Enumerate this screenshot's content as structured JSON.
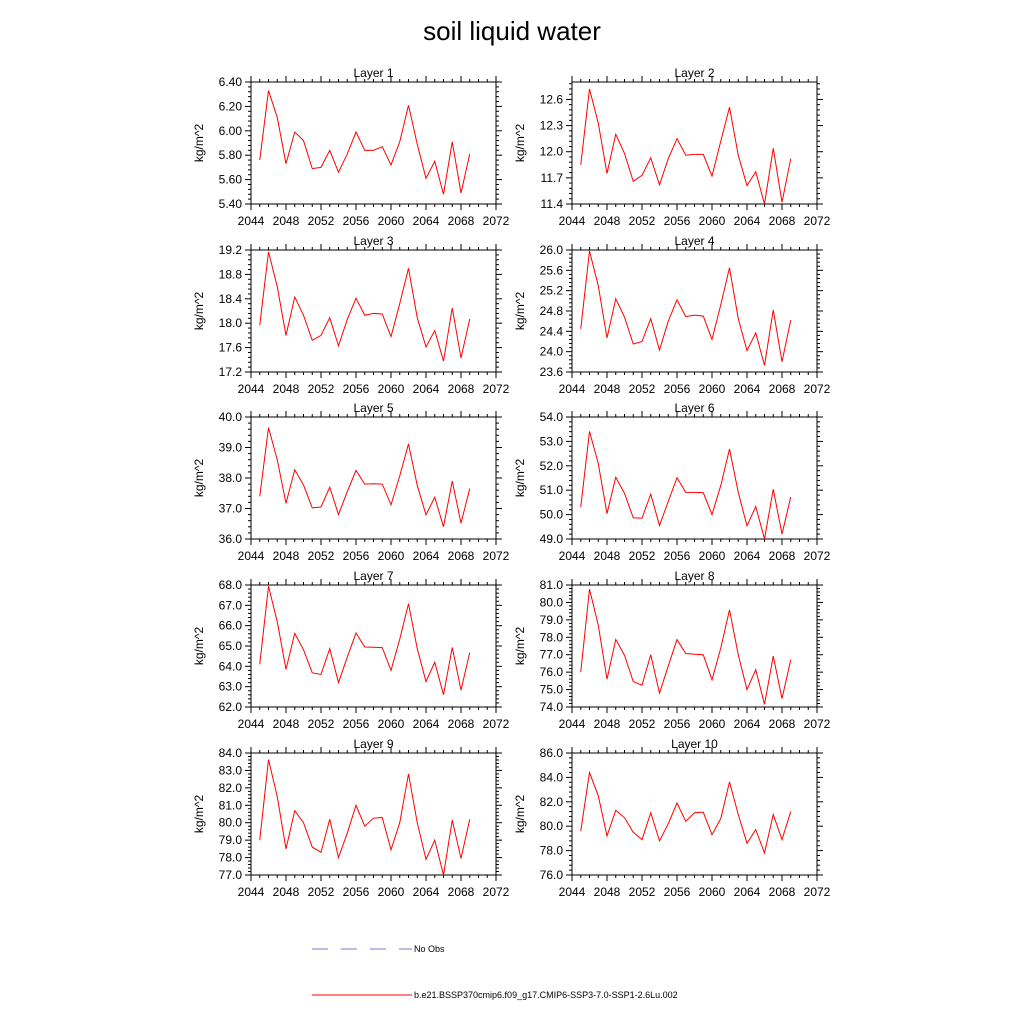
{
  "title": "soil liquid water",
  "colors": {
    "series": "#ff0000",
    "obs": "#7777cc",
    "axis": "#000000"
  },
  "legend": {
    "obs_label": "No Obs",
    "series_label": "b.e21.BSSP370cmip6.f09_g17.CMIP6-SSP3-7.0-SSP1-2.6Lu.002"
  },
  "chart_data": [
    {
      "type": "line",
      "title": "Layer 1",
      "xlabel": "",
      "ylabel": "kg/m^2",
      "xlim": [
        2044,
        2072
      ],
      "ylim": [
        5.4,
        6.4
      ],
      "xticks": [
        2044,
        2048,
        2052,
        2056,
        2060,
        2064,
        2068,
        2072
      ],
      "yticks": [
        "5.40",
        "5.60",
        "5.80",
        "6.00",
        "6.20",
        "6.40"
      ],
      "x": [
        2045,
        2046,
        2047,
        2048,
        2049,
        2050,
        2051,
        2052,
        2053,
        2054,
        2055,
        2056,
        2057,
        2058,
        2059,
        2060,
        2061,
        2062,
        2063,
        2064,
        2065,
        2066,
        2067,
        2068,
        2069
      ],
      "series": [
        {
          "values": [
            5.76,
            6.33,
            6.11,
            5.73,
            5.99,
            5.92,
            5.69,
            5.7,
            5.84,
            5.66,
            5.81,
            5.99,
            5.84,
            5.84,
            5.87,
            5.72,
            5.91,
            6.21,
            5.89,
            5.61,
            5.75,
            5.48,
            5.91,
            5.49,
            5.81
          ]
        }
      ]
    },
    {
      "type": "line",
      "title": "Layer 2",
      "xlabel": "",
      "ylabel": "kg/m^2",
      "xlim": [
        2044,
        2072
      ],
      "ylim": [
        11.4,
        12.8
      ],
      "xticks": [
        2044,
        2048,
        2052,
        2056,
        2060,
        2064,
        2068,
        2072
      ],
      "yticks": [
        "11.4",
        "11.7",
        "12.0",
        "12.3",
        "12.6"
      ],
      "x": [
        2045,
        2046,
        2047,
        2048,
        2049,
        2050,
        2051,
        2052,
        2053,
        2054,
        2055,
        2056,
        2057,
        2058,
        2059,
        2060,
        2061,
        2062,
        2063,
        2064,
        2065,
        2066,
        2067,
        2068,
        2069
      ],
      "series": [
        {
          "values": [
            11.85,
            12.72,
            12.33,
            11.75,
            12.2,
            11.98,
            11.66,
            11.73,
            11.93,
            11.62,
            11.92,
            12.15,
            11.96,
            11.97,
            11.97,
            11.72,
            12.12,
            12.51,
            11.96,
            11.61,
            11.77,
            11.4,
            12.04,
            11.42,
            11.92
          ]
        }
      ]
    },
    {
      "type": "line",
      "title": "Layer 3",
      "xlabel": "",
      "ylabel": "kg/m^2",
      "xlim": [
        2044,
        2072
      ],
      "ylim": [
        17.2,
        19.2
      ],
      "xticks": [
        2044,
        2048,
        2052,
        2056,
        2060,
        2064,
        2068,
        2072
      ],
      "yticks": [
        "17.2",
        "17.6",
        "18.0",
        "18.4",
        "18.8",
        "19.2"
      ],
      "x": [
        2045,
        2046,
        2047,
        2048,
        2049,
        2050,
        2051,
        2052,
        2053,
        2054,
        2055,
        2056,
        2057,
        2058,
        2059,
        2060,
        2061,
        2062,
        2063,
        2064,
        2065,
        2066,
        2067,
        2068,
        2069
      ],
      "series": [
        {
          "values": [
            17.97,
            19.17,
            18.6,
            17.8,
            18.43,
            18.13,
            17.72,
            17.8,
            18.09,
            17.63,
            18.06,
            18.41,
            18.13,
            18.16,
            18.15,
            17.78,
            18.32,
            18.9,
            18.09,
            17.61,
            17.88,
            17.38,
            18.25,
            17.43,
            18.07
          ]
        }
      ]
    },
    {
      "type": "line",
      "title": "Layer 4",
      "xlabel": "",
      "ylabel": "kg/m^2",
      "xlim": [
        2044,
        2072
      ],
      "ylim": [
        23.6,
        26.0
      ],
      "xticks": [
        2044,
        2048,
        2052,
        2056,
        2060,
        2064,
        2068,
        2072
      ],
      "yticks": [
        "23.6",
        "24.0",
        "24.4",
        "24.8",
        "25.2",
        "25.6",
        "26.0"
      ],
      "x": [
        2045,
        2046,
        2047,
        2048,
        2049,
        2050,
        2051,
        2052,
        2053,
        2054,
        2055,
        2056,
        2057,
        2058,
        2059,
        2060,
        2061,
        2062,
        2063,
        2064,
        2065,
        2066,
        2067,
        2068,
        2069
      ],
      "series": [
        {
          "values": [
            24.45,
            25.98,
            25.3,
            24.27,
            25.04,
            24.68,
            24.15,
            24.2,
            24.65,
            24.03,
            24.6,
            25.02,
            24.69,
            24.72,
            24.7,
            24.24,
            24.92,
            25.65,
            24.65,
            24.02,
            24.37,
            23.73,
            24.82,
            23.8,
            24.62
          ]
        }
      ]
    },
    {
      "type": "line",
      "title": "Layer 5",
      "xlabel": "",
      "ylabel": "kg/m^2",
      "xlim": [
        2044,
        2072
      ],
      "ylim": [
        36.0,
        40.0
      ],
      "xticks": [
        2044,
        2048,
        2052,
        2056,
        2060,
        2064,
        2068,
        2072
      ],
      "yticks": [
        "36.0",
        "37.0",
        "38.0",
        "39.0",
        "40.0"
      ],
      "x": [
        2045,
        2046,
        2047,
        2048,
        2049,
        2050,
        2051,
        2052,
        2053,
        2054,
        2055,
        2056,
        2057,
        2058,
        2059,
        2060,
        2061,
        2062,
        2063,
        2064,
        2065,
        2066,
        2067,
        2068,
        2069
      ],
      "series": [
        {
          "values": [
            37.4,
            39.65,
            38.6,
            37.17,
            38.27,
            37.77,
            37.02,
            37.05,
            37.7,
            36.8,
            37.55,
            38.25,
            37.8,
            37.81,
            37.8,
            37.12,
            38.07,
            39.12,
            37.76,
            36.79,
            37.37,
            36.4,
            37.9,
            36.52,
            37.65
          ]
        }
      ]
    },
    {
      "type": "line",
      "title": "Layer 6",
      "xlabel": "",
      "ylabel": "kg/m^2",
      "xlim": [
        2044,
        2072
      ],
      "ylim": [
        49.0,
        54.0
      ],
      "xticks": [
        2044,
        2048,
        2052,
        2056,
        2060,
        2064,
        2068,
        2072
      ],
      "yticks": [
        "49.0",
        "50.0",
        "51.0",
        "52.0",
        "53.0",
        "54.0"
      ],
      "x": [
        2045,
        2046,
        2047,
        2048,
        2049,
        2050,
        2051,
        2052,
        2053,
        2054,
        2055,
        2056,
        2057,
        2058,
        2059,
        2060,
        2061,
        2062,
        2063,
        2064,
        2065,
        2066,
        2067,
        2068,
        2069
      ],
      "series": [
        {
          "values": [
            50.31,
            53.41,
            52.1,
            50.04,
            51.53,
            50.87,
            49.87,
            49.85,
            50.84,
            49.55,
            50.54,
            51.51,
            50.91,
            50.91,
            50.9,
            50.0,
            51.19,
            52.69,
            50.91,
            49.54,
            50.33,
            49.0,
            51.04,
            49.2,
            50.72
          ]
        }
      ]
    },
    {
      "type": "line",
      "title": "Layer 7",
      "xlabel": "",
      "ylabel": "kg/m^2",
      "xlim": [
        2044,
        2072
      ],
      "ylim": [
        62.0,
        68.0
      ],
      "xticks": [
        2044,
        2048,
        2052,
        2056,
        2060,
        2064,
        2068,
        2072
      ],
      "yticks": [
        "62.0",
        "63.0",
        "64.0",
        "65.0",
        "66.0",
        "67.0",
        "68.0"
      ],
      "x": [
        2045,
        2046,
        2047,
        2048,
        2049,
        2050,
        2051,
        2052,
        2053,
        2054,
        2055,
        2056,
        2057,
        2058,
        2059,
        2060,
        2061,
        2062,
        2063,
        2064,
        2065,
        2066,
        2067,
        2068,
        2069
      ],
      "series": [
        {
          "values": [
            64.1,
            67.94,
            66.2,
            63.85,
            65.62,
            64.82,
            63.68,
            63.6,
            64.87,
            63.2,
            64.45,
            65.64,
            64.95,
            64.94,
            64.92,
            63.8,
            65.34,
            67.08,
            64.87,
            63.25,
            64.2,
            62.6,
            64.93,
            62.83,
            64.68
          ]
        }
      ]
    },
    {
      "type": "line",
      "title": "Layer 8",
      "xlabel": "",
      "ylabel": "kg/m^2",
      "xlim": [
        2044,
        2072
      ],
      "ylim": [
        74.0,
        81.0
      ],
      "xticks": [
        2044,
        2048,
        2052,
        2056,
        2060,
        2064,
        2068,
        2072
      ],
      "yticks": [
        "74.0",
        "75.0",
        "76.0",
        "77.0",
        "78.0",
        "79.0",
        "80.0",
        "81.0"
      ],
      "x": [
        2045,
        2046,
        2047,
        2048,
        2049,
        2050,
        2051,
        2052,
        2053,
        2054,
        2055,
        2056,
        2057,
        2058,
        2059,
        2060,
        2061,
        2062,
        2063,
        2064,
        2065,
        2066,
        2067,
        2068,
        2069
      ],
      "series": [
        {
          "values": [
            76.0,
            80.76,
            78.7,
            75.6,
            77.87,
            76.97,
            75.46,
            75.25,
            77.0,
            74.8,
            76.35,
            77.87,
            77.07,
            77.03,
            77.0,
            75.56,
            77.38,
            79.57,
            77.0,
            75.0,
            76.14,
            74.15,
            76.92,
            74.48,
            76.71
          ]
        }
      ]
    },
    {
      "type": "line",
      "title": "Layer 9",
      "xlabel": "",
      "ylabel": "kg/m^2",
      "xlim": [
        2044,
        2072
      ],
      "ylim": [
        77.0,
        84.0
      ],
      "xticks": [
        2044,
        2048,
        2052,
        2056,
        2060,
        2064,
        2068,
        2072
      ],
      "yticks": [
        "77.0",
        "78.0",
        "79.0",
        "80.0",
        "81.0",
        "82.0",
        "83.0",
        "84.0"
      ],
      "x": [
        2045,
        2046,
        2047,
        2048,
        2049,
        2050,
        2051,
        2052,
        2053,
        2054,
        2055,
        2056,
        2057,
        2058,
        2059,
        2060,
        2061,
        2062,
        2063,
        2064,
        2065,
        2066,
        2067,
        2068,
        2069
      ],
      "series": [
        {
          "values": [
            79.0,
            83.62,
            81.5,
            78.5,
            80.69,
            80.0,
            78.6,
            78.3,
            80.2,
            78.0,
            79.4,
            81.0,
            79.8,
            80.26,
            80.3,
            78.45,
            80.0,
            82.8,
            80.0,
            77.9,
            79.0,
            77.0,
            80.15,
            77.95,
            80.2
          ]
        }
      ]
    },
    {
      "type": "line",
      "title": "Layer 10",
      "xlabel": "",
      "ylabel": "kg/m^2",
      "xlim": [
        2044,
        2072
      ],
      "ylim": [
        76.0,
        86.0
      ],
      "xticks": [
        2044,
        2048,
        2052,
        2056,
        2060,
        2064,
        2068,
        2072
      ],
      "yticks": [
        "76.0",
        "78.0",
        "80.0",
        "82.0",
        "84.0",
        "86.0"
      ],
      "x": [
        2045,
        2046,
        2047,
        2048,
        2049,
        2050,
        2051,
        2052,
        2053,
        2054,
        2055,
        2056,
        2057,
        2058,
        2059,
        2060,
        2061,
        2062,
        2063,
        2064,
        2065,
        2066,
        2067,
        2068,
        2069
      ],
      "series": [
        {
          "values": [
            79.6,
            84.4,
            82.5,
            79.2,
            81.3,
            80.7,
            79.5,
            78.9,
            81.1,
            78.8,
            80.2,
            81.9,
            80.4,
            81.1,
            81.15,
            79.3,
            80.62,
            83.63,
            80.96,
            78.6,
            79.72,
            77.8,
            80.96,
            78.9,
            81.2
          ]
        }
      ]
    }
  ]
}
